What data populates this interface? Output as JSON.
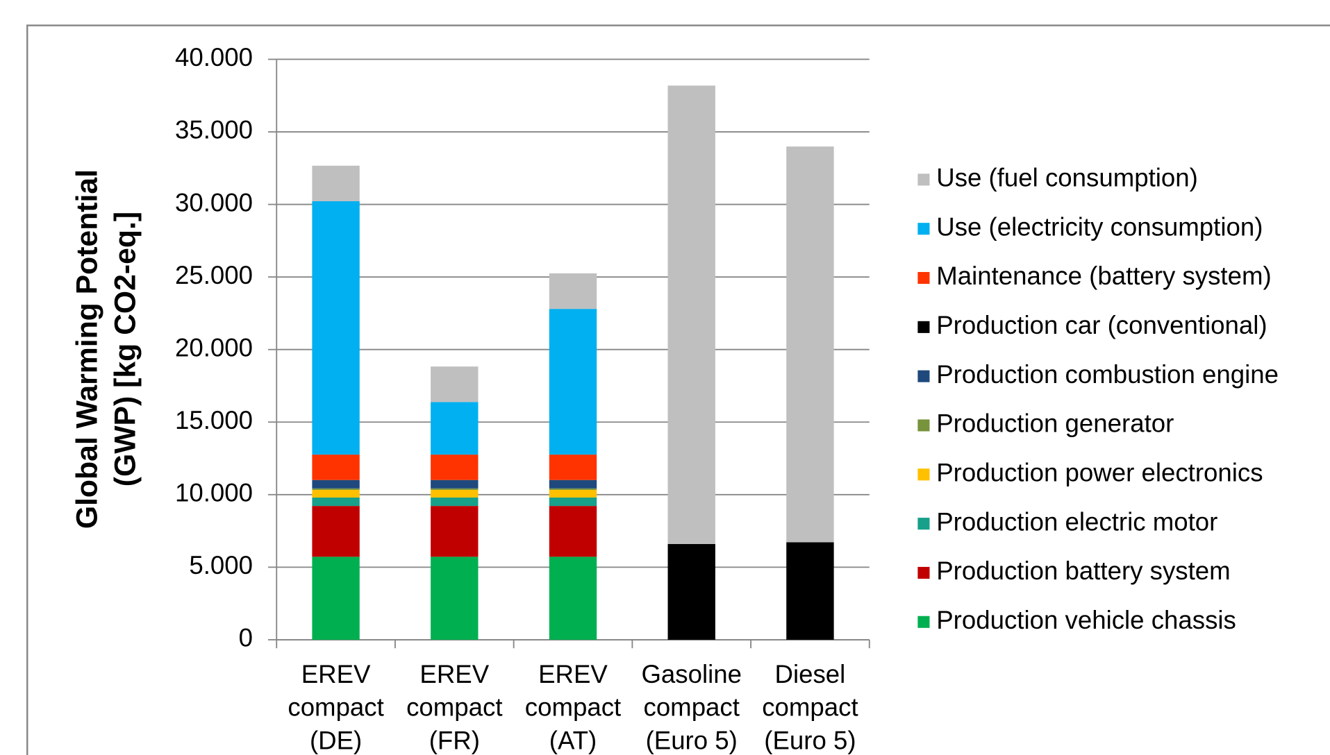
{
  "chart_data": {
    "type": "stacked_bar",
    "ylabel": [
      "Global Warming Potential",
      "(GWP) [kg CO2-eq.]"
    ],
    "categories": [
      [
        "EREV",
        "compact",
        "(DE)"
      ],
      [
        "EREV",
        "compact",
        "(FR)"
      ],
      [
        "EREV",
        "compact",
        "(AT)"
      ],
      [
        "Gasoline",
        "compact",
        "(Euro 5)"
      ],
      [
        "Diesel",
        "compact",
        "(Euro 5)"
      ]
    ],
    "series": [
      {
        "name": "Production vehicle chassis",
        "color": "#00b050",
        "values": [
          5720,
          5720,
          5720,
          0,
          0
        ]
      },
      {
        "name": "Production battery system",
        "color": "#c00000",
        "values": [
          3500,
          3500,
          3500,
          0,
          0
        ]
      },
      {
        "name": "Production electric motor",
        "color": "#17a08a",
        "values": [
          580,
          580,
          580,
          0,
          0
        ]
      },
      {
        "name": "Production power electronics",
        "color": "#ffc000",
        "values": [
          530,
          530,
          530,
          0,
          0
        ]
      },
      {
        "name": "Production generator",
        "color": "#77933c",
        "values": [
          100,
          100,
          100,
          0,
          0
        ]
      },
      {
        "name": "Production combustion engine",
        "color": "#1f497d",
        "values": [
          580,
          580,
          580,
          0,
          0
        ]
      },
      {
        "name": "Production car (conventional)",
        "color": "#000000",
        "values": [
          0,
          0,
          0,
          6600,
          6720
        ]
      },
      {
        "name": "Maintenance (battery system)",
        "color": "#ff3300",
        "values": [
          1750,
          1750,
          1750,
          0,
          0
        ]
      },
      {
        "name": "Use (electricity consumption)",
        "color": "#00b0f0",
        "values": [
          17460,
          3620,
          10040,
          0,
          0
        ]
      },
      {
        "name": "Use (fuel consumption)",
        "color": "#bfbfbf",
        "values": [
          2450,
          2450,
          2450,
          31590,
          27270
        ]
      }
    ],
    "ylim": [
      0,
      40000
    ],
    "yticks": [
      0,
      {
        "value": 5000,
        "label": "5.000"
      },
      {
        "value": 10000,
        "label": "10.000"
      },
      {
        "value": 15000,
        "label": "15.000"
      },
      {
        "value": 20000,
        "label": "20.000"
      },
      {
        "value": 25000,
        "label": "25.000"
      },
      {
        "value": 30000,
        "label": "30.000"
      },
      {
        "value": 35000,
        "label": "35.000"
      },
      {
        "value": 40000,
        "label": "40.000"
      }
    ],
    "grid": true,
    "legend": "right"
  }
}
